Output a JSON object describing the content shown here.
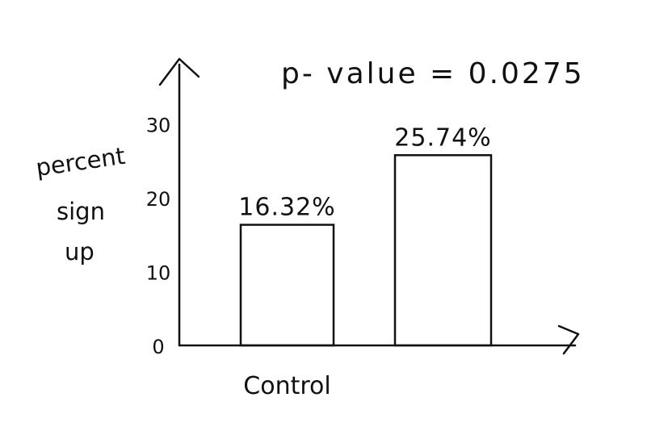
{
  "chart_data": {
    "type": "bar",
    "annotation": "p- value = 0.0275",
    "ylabel": [
      "percent",
      "sign",
      "up"
    ],
    "yticks": [
      0,
      10,
      20,
      30
    ],
    "ylim": [
      0,
      38
    ],
    "categories": [
      "Control",
      ""
    ],
    "values": [
      16.32,
      25.74
    ],
    "data_labels": [
      "16.32%",
      "25.74%"
    ],
    "grid": false,
    "legend": "none"
  },
  "colors": {
    "ink": "#111111",
    "background": "#ffffff"
  }
}
